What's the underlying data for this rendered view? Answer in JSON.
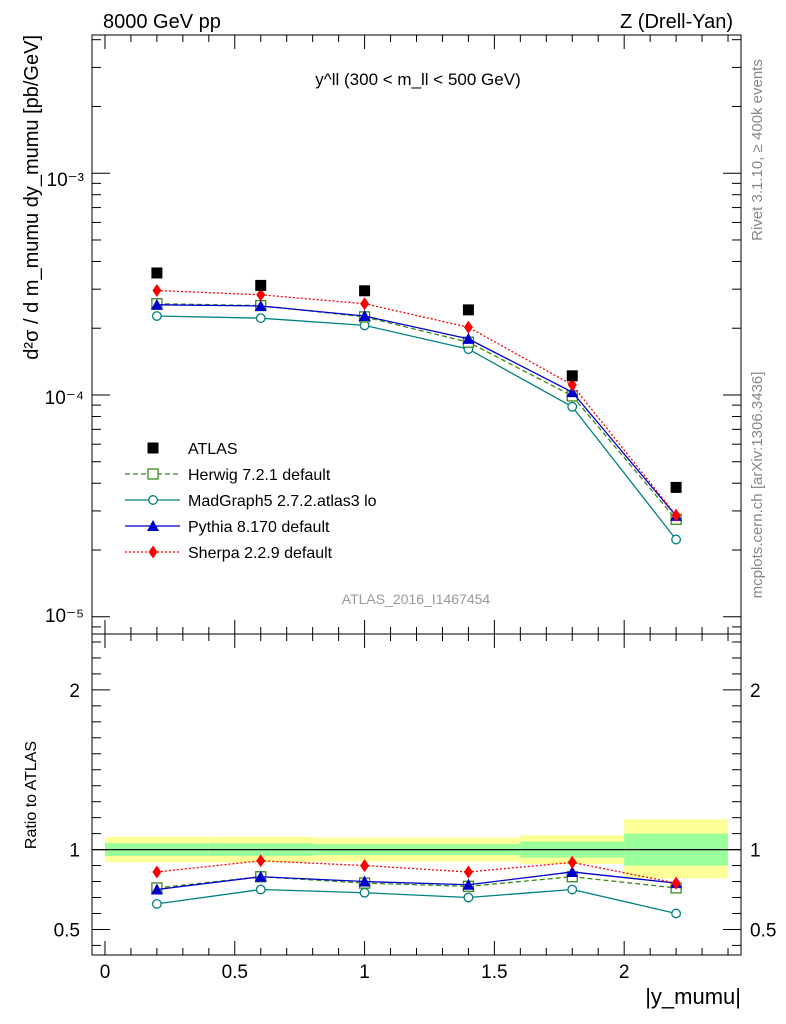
{
  "header": {
    "left": "8000 GeV pp",
    "right": "Z (Drell-Yan)"
  },
  "side": {
    "rivet": "Rivet 3.1.10, ≥ 400k events",
    "mcplots": "mcplots.cern.ch [arXiv:1306.3436]"
  },
  "watermark": "ATLAS_2016_I1467454",
  "colors": {
    "atlas": "#000000",
    "herwig": "#3a8a1a",
    "madgraph": "#008080",
    "pythia": "#0000cc",
    "sherpa": "#ff0000",
    "band_inner": "#99ff99",
    "band_outer": "#ffff99"
  },
  "chart_data": [
    {
      "type": "scatter",
      "title": "y^ll (300 < m_ll < 500 GeV)",
      "ylabel": "d²σ / d m_mumu dy_mumu [pb/GeV]",
      "yscale": "log",
      "ylim": [
        8.36e-06,
        0.0042
      ],
      "xlim": [
        -0.05,
        2.45
      ],
      "y_tick_labels": [
        "10⁻⁵",
        "10⁻⁴",
        "10⁻³"
      ],
      "legend": "center-left",
      "x": [
        0.2,
        0.6,
        1.0,
        1.4,
        1.8,
        2.2
      ],
      "series": [
        {
          "name": "ATLAS",
          "key": "atlas",
          "values": [
            0.000355,
            0.000312,
            0.000295,
            0.000242,
            0.000122,
            3.83e-05
          ]
        },
        {
          "name": "Herwig 7.2.1 default",
          "key": "herwig",
          "values": [
            0.000258,
            0.000253,
            0.000225,
            0.000173,
            9.9e-05,
            2.75e-05
          ]
        },
        {
          "name": "MadGraph5 2.7.2.atlas3 lo",
          "key": "madgraph",
          "values": [
            0.000227,
            0.000222,
            0.000206,
            0.000161,
            8.85e-05,
            2.23e-05
          ]
        },
        {
          "name": "Pythia 8.170 default",
          "key": "pythia",
          "values": [
            0.000255,
            0.000252,
            0.000227,
            0.000179,
            0.000103,
            2.85e-05
          ]
        },
        {
          "name": "Sherpa 2.2.9 default",
          "key": "sherpa",
          "values": [
            0.000296,
            0.000283,
            0.000258,
            0.000202,
            0.000111,
            2.87e-05
          ]
        }
      ]
    },
    {
      "type": "line",
      "ylabel": "Ratio to ATLAS",
      "xlabel": "|y_mumu|",
      "ylim": [
        0.34,
        2.35
      ],
      "xlim": [
        -0.05,
        2.45
      ],
      "y_ticks": [
        0.5,
        1,
        2
      ],
      "y_tick_labels": [
        "0.5",
        "1",
        "2"
      ],
      "x_ticks": [
        0,
        0.5,
        1,
        1.5,
        2
      ],
      "x_tick_labels": [
        "0",
        "0.5",
        "1",
        "1.5",
        "2"
      ],
      "bands": [
        {
          "x0": 0.0,
          "x1": 0.4,
          "inner": [
            0.96,
            1.04
          ],
          "outer": [
            0.92,
            1.08
          ]
        },
        {
          "x0": 0.4,
          "x1": 0.8,
          "inner": [
            0.96,
            1.04
          ],
          "outer": [
            0.92,
            1.08
          ]
        },
        {
          "x0": 0.8,
          "x1": 1.2,
          "inner": [
            0.965,
            1.035
          ],
          "outer": [
            0.925,
            1.075
          ]
        },
        {
          "x0": 1.2,
          "x1": 1.6,
          "inner": [
            0.965,
            1.035
          ],
          "outer": [
            0.925,
            1.075
          ]
        },
        {
          "x0": 1.6,
          "x1": 2.0,
          "inner": [
            0.95,
            1.05
          ],
          "outer": [
            0.91,
            1.09
          ]
        },
        {
          "x0": 2.0,
          "x1": 2.4,
          "inner": [
            0.9,
            1.1
          ],
          "outer": [
            0.82,
            1.19
          ]
        }
      ],
      "x": [
        0.2,
        0.6,
        1.0,
        1.4,
        1.8,
        2.2
      ],
      "series": [
        {
          "name": "Herwig 7.2.1 default",
          "key": "herwig",
          "values": [
            0.76,
            0.83,
            0.79,
            0.77,
            0.83,
            0.76
          ]
        },
        {
          "name": "MadGraph5 2.7.2.atlas3 lo",
          "key": "madgraph",
          "values": [
            0.66,
            0.75,
            0.73,
            0.7,
            0.75,
            0.6
          ]
        },
        {
          "name": "Pythia 8.170 default",
          "key": "pythia",
          "values": [
            0.75,
            0.83,
            0.8,
            0.78,
            0.86,
            0.79
          ]
        },
        {
          "name": "Sherpa 2.2.9 default",
          "key": "sherpa",
          "values": [
            0.86,
            0.93,
            0.9,
            0.86,
            0.92,
            0.79
          ]
        }
      ]
    }
  ]
}
